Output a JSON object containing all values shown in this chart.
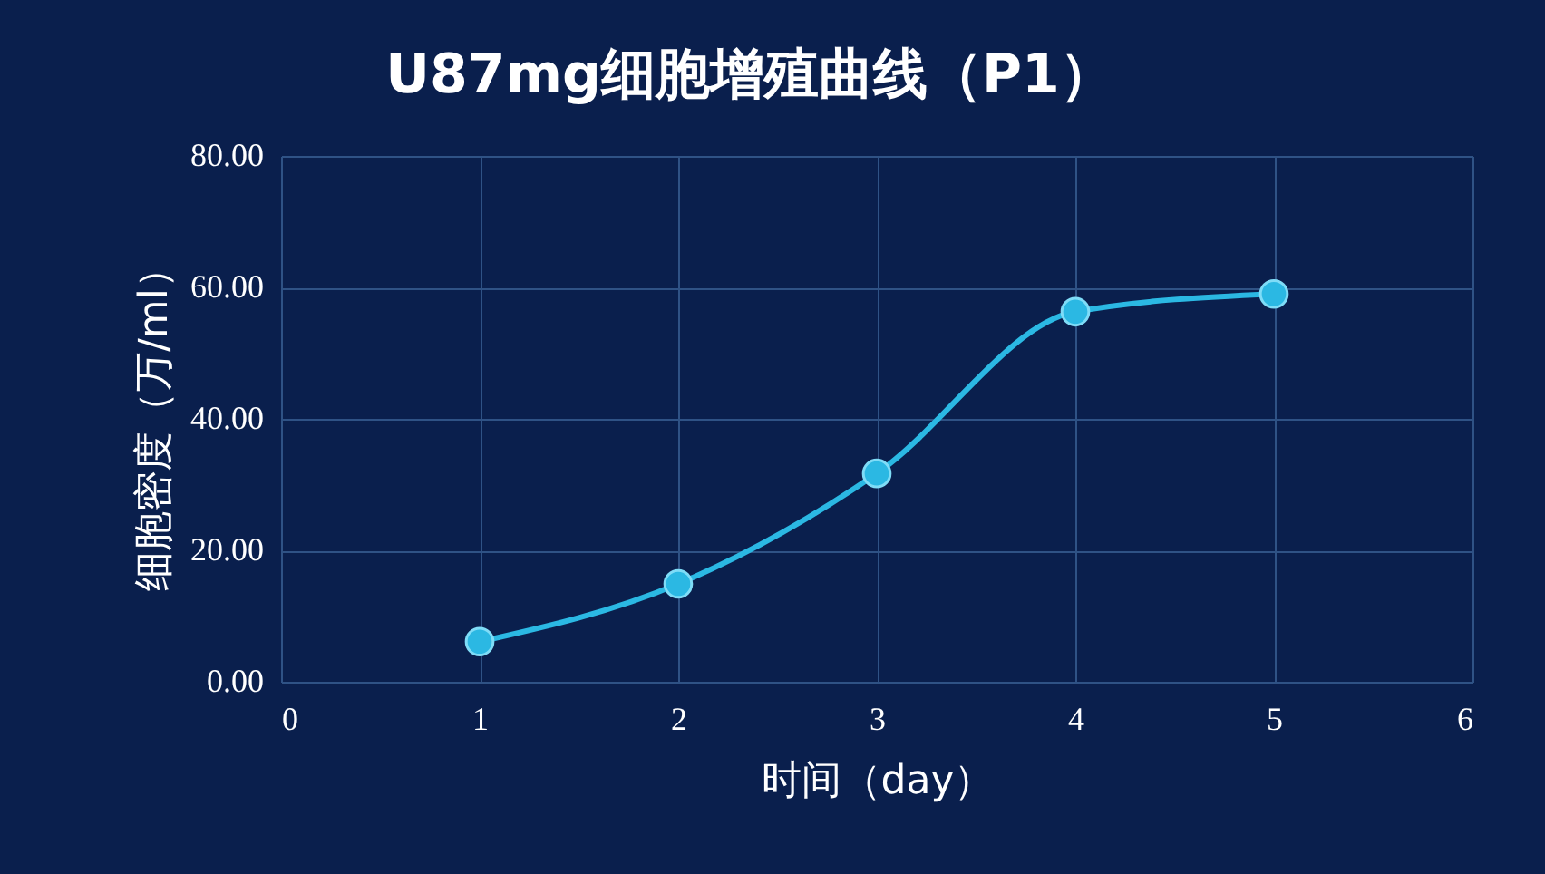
{
  "chart_data": {
    "type": "line",
    "title": "U87mg细胞增殖曲线（P1）",
    "xlabel": "时间（day）",
    "ylabel": "细胞密度（万/ml）",
    "x": [
      1,
      2,
      3,
      4,
      5
    ],
    "series": [
      {
        "color": "#2bb8e3",
        "values": [
          6.1,
          14.9,
          31.7,
          56.3,
          59.0
        ]
      }
    ],
    "xlim": [
      0,
      6
    ],
    "xticks": [
      0,
      1,
      2,
      3,
      4,
      5,
      6
    ],
    "ylim": [
      0,
      80
    ],
    "yticks": [
      {
        "value": 0,
        "label": "0.00"
      },
      {
        "value": 20,
        "label": "20.00"
      },
      {
        "value": 40,
        "label": "40.00"
      },
      {
        "value": 60,
        "label": "60.00"
      },
      {
        "value": 80,
        "label": "80.00"
      }
    ],
    "grid": true,
    "marker": "circle",
    "line_style": "solid",
    "legend": false
  }
}
